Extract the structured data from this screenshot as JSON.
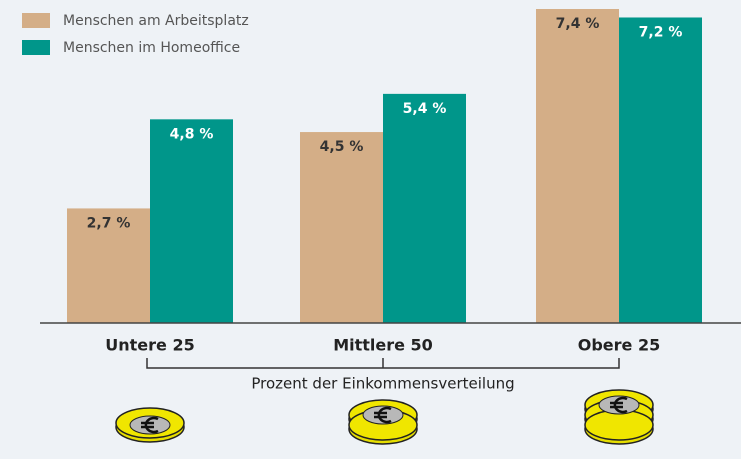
{
  "chart_data": {
    "type": "bar",
    "categories": [
      "Untere 25",
      "Mittlere 50",
      "Obere 25"
    ],
    "x_label": "Prozent der Einkommensverteilung",
    "series": [
      {
        "name": "Menschen am Arbeitsplatz",
        "color": "#d4ae87",
        "values": [
          2.7,
          4.5,
          7.4
        ],
        "value_labels": [
          "2,7 %",
          "4,5 %",
          "7,4 %"
        ]
      },
      {
        "name": "Menschen im Homeoffice",
        "color": "#00968a",
        "values": [
          4.8,
          5.4,
          7.2
        ],
        "value_labels": [
          "4,8 %",
          "5,4 %",
          "7,2 %"
        ]
      }
    ]
  }
}
